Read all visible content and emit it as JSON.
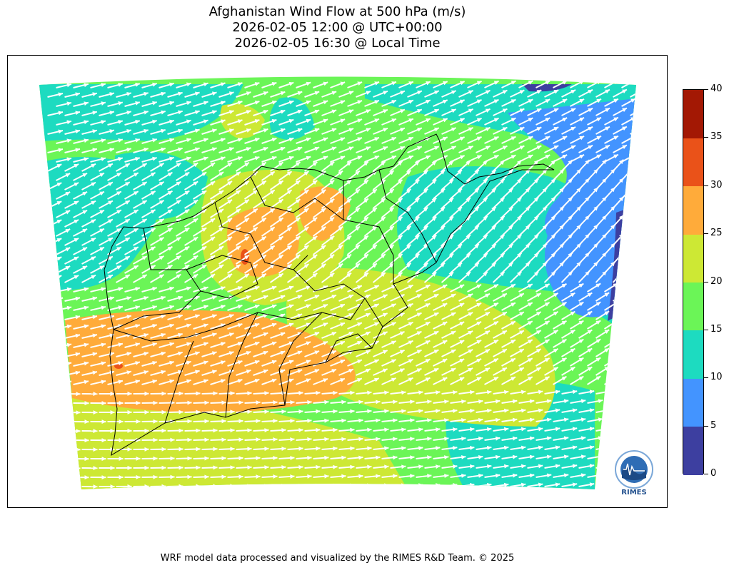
{
  "title": {
    "line1": "Afghanistan Wind Flow at 500 hPa (m/s)",
    "line2": "2026-02-05 12:00 @ UTC+00:00",
    "line3": "2026-02-05 16:30 @ Local Time"
  },
  "colorbar": {
    "levels": [
      0,
      5,
      10,
      15,
      20,
      25,
      30,
      35,
      40
    ],
    "labels": [
      "0",
      "5",
      "10",
      "15",
      "20",
      "25",
      "30",
      "35",
      "40"
    ],
    "colors": [
      "#3d3fa0",
      "#4394ff",
      "#1ddbc0",
      "#6bf557",
      "#cde834",
      "#ffab3a",
      "#ea5219",
      "#a31804"
    ]
  },
  "map": {
    "region": "Afghanistan",
    "variable": "wind speed",
    "level": "500 hPa",
    "units": "m/s",
    "vector_color": "#ffffff",
    "border_color": "#000000"
  },
  "logo": {
    "text": "RIMES"
  },
  "footer": {
    "text": "WRF model data processed and visualized by the RIMES R&D Team. © 2025"
  }
}
